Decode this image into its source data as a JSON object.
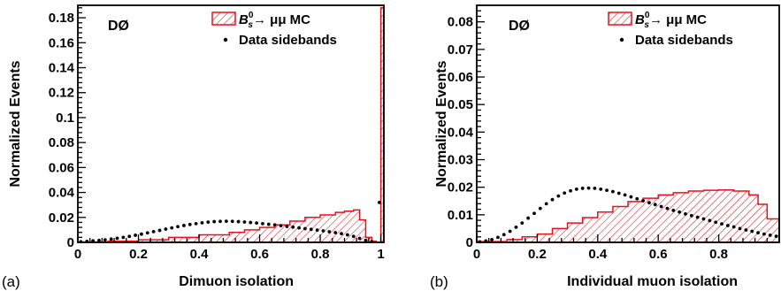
{
  "colors": {
    "mc": "#e8101a",
    "data": "#000000",
    "axis": "#000000"
  },
  "chart_data": [
    {
      "panel_label": "(a)",
      "type": "histogram",
      "experiment_label": "DØ",
      "xlabel": "Dimuon isolation",
      "ylabel": "Normalized Events",
      "xlim": [
        0,
        1.01
      ],
      "ylim": [
        0,
        0.19
      ],
      "xticks": [
        0,
        0.2,
        0.4,
        0.6,
        0.8,
        1
      ],
      "xtick_labels": [
        "0",
        "0.2",
        "0.4",
        "0.6",
        "0.8",
        "1"
      ],
      "yticks": [
        0,
        0.02,
        0.04,
        0.06,
        0.08,
        0.1,
        0.12,
        0.14,
        0.16,
        0.18
      ],
      "ytick_labels": [
        "0",
        "0.02",
        "0.04",
        "0.06",
        "0.08",
        "0.1",
        "0.12",
        "0.14",
        "0.16",
        "0.18"
      ],
      "legend": {
        "mc_pre": "B",
        "mc_sup": "0",
        "mc_sub": "s",
        "mc_post": "→ μμ MC",
        "data_label": "Data sidebands",
        "position": "top-right"
      },
      "series": [
        {
          "name": "B0s → μμ MC",
          "style": "hatched-histogram",
          "bin_edges_x": [
            0.0,
            0.1,
            0.2,
            0.3,
            0.4,
            0.5,
            0.55,
            0.6,
            0.65,
            0.7,
            0.75,
            0.8,
            0.85,
            0.88,
            0.91,
            0.93,
            0.95,
            0.97,
            0.985,
            1.0,
            1.01
          ],
          "values": [
            0.0003,
            0.001,
            0.002,
            0.004,
            0.006,
            0.008,
            0.01,
            0.012,
            0.014,
            0.017,
            0.02,
            0.022,
            0.024,
            0.025,
            0.026,
            0.018,
            0.004,
            0.001,
            0.0,
            0.188
          ]
        },
        {
          "name": "Data sidebands",
          "style": "points",
          "x": [
            0.01,
            0.03,
            0.05,
            0.07,
            0.09,
            0.11,
            0.13,
            0.15,
            0.17,
            0.19,
            0.21,
            0.23,
            0.25,
            0.27,
            0.29,
            0.31,
            0.33,
            0.35,
            0.37,
            0.39,
            0.41,
            0.43,
            0.45,
            0.47,
            0.49,
            0.51,
            0.53,
            0.55,
            0.57,
            0.59,
            0.61,
            0.63,
            0.65,
            0.67,
            0.69,
            0.71,
            0.73,
            0.75,
            0.77,
            0.79,
            0.81,
            0.83,
            0.85,
            0.87,
            0.89,
            0.91,
            0.93,
            0.95,
            0.97,
            0.995
          ],
          "y": [
            0.0005,
            0.0008,
            0.0012,
            0.0016,
            0.002,
            0.0026,
            0.0033,
            0.004,
            0.0048,
            0.0057,
            0.0066,
            0.0076,
            0.0086,
            0.0096,
            0.0106,
            0.0116,
            0.0126,
            0.0135,
            0.0143,
            0.015,
            0.0157,
            0.0162,
            0.0166,
            0.0168,
            0.0169,
            0.0168,
            0.0166,
            0.0163,
            0.0159,
            0.0155,
            0.015,
            0.0145,
            0.014,
            0.0134,
            0.0128,
            0.0122,
            0.0116,
            0.011,
            0.0104,
            0.0098,
            0.0092,
            0.0085,
            0.0078,
            0.007,
            0.006,
            0.0048,
            0.0032,
            0.0016,
            0.0006,
            0.032
          ]
        }
      ]
    },
    {
      "panel_label": "(b)",
      "type": "histogram",
      "experiment_label": "DØ",
      "xlabel": "Individual muon isolation",
      "ylabel": "Normalized Events",
      "xlim": [
        0,
        1.0
      ],
      "ylim": [
        0,
        0.086
      ],
      "xticks": [
        0,
        0.2,
        0.4,
        0.6,
        0.8
      ],
      "xtick_labels": [
        "0",
        "0.2",
        "0.4",
        "0.6",
        "0.8"
      ],
      "yticks": [
        0,
        0.01,
        0.02,
        0.03,
        0.04,
        0.05,
        0.06,
        0.07,
        0.08
      ],
      "ytick_labels": [
        "0",
        "0.01",
        "0.02",
        "0.03",
        "0.04",
        "0.05",
        "0.06",
        "0.07",
        "0.08"
      ],
      "legend": {
        "mc_pre": "B",
        "mc_sup": "0",
        "mc_sub": "s",
        "mc_post": "→ μμ MC",
        "data_label": "Data sidebands",
        "position": "top-right"
      },
      "series": [
        {
          "name": "B0s → μμ MC",
          "style": "hatched-histogram",
          "bin_edges_x": [
            0.0,
            0.1,
            0.15,
            0.2,
            0.25,
            0.3,
            0.35,
            0.4,
            0.45,
            0.5,
            0.55,
            0.6,
            0.65,
            0.7,
            0.75,
            0.8,
            0.85,
            0.9,
            0.93,
            0.96,
            1.0
          ],
          "values": [
            0.0003,
            0.001,
            0.002,
            0.003,
            0.005,
            0.007,
            0.009,
            0.011,
            0.013,
            0.0148,
            0.016,
            0.0172,
            0.018,
            0.0186,
            0.0189,
            0.019,
            0.0186,
            0.0172,
            0.0138,
            0.0085
          ]
        },
        {
          "name": "Data sidebands",
          "style": "points",
          "x": [
            0.01,
            0.03,
            0.05,
            0.07,
            0.09,
            0.11,
            0.13,
            0.15,
            0.17,
            0.19,
            0.21,
            0.23,
            0.25,
            0.27,
            0.29,
            0.31,
            0.33,
            0.35,
            0.37,
            0.39,
            0.41,
            0.43,
            0.45,
            0.47,
            0.49,
            0.51,
            0.53,
            0.55,
            0.57,
            0.59,
            0.61,
            0.63,
            0.65,
            0.67,
            0.69,
            0.71,
            0.73,
            0.75,
            0.77,
            0.79,
            0.81,
            0.83,
            0.85,
            0.87,
            0.89,
            0.91,
            0.93,
            0.95,
            0.97,
            0.99
          ],
          "y": [
            0.0002,
            0.0005,
            0.001,
            0.0018,
            0.0028,
            0.004,
            0.0055,
            0.007,
            0.0088,
            0.0105,
            0.0123,
            0.014,
            0.0155,
            0.0168,
            0.0179,
            0.0187,
            0.0193,
            0.0196,
            0.0197,
            0.0196,
            0.0193,
            0.0189,
            0.0184,
            0.0178,
            0.0172,
            0.0165,
            0.0158,
            0.0151,
            0.0144,
            0.0137,
            0.013,
            0.0123,
            0.0116,
            0.011,
            0.0103,
            0.0097,
            0.0091,
            0.0085,
            0.0079,
            0.0073,
            0.0067,
            0.0061,
            0.0056,
            0.005,
            0.0045,
            0.004,
            0.0035,
            0.003,
            0.0026,
            0.0022
          ]
        }
      ]
    }
  ]
}
